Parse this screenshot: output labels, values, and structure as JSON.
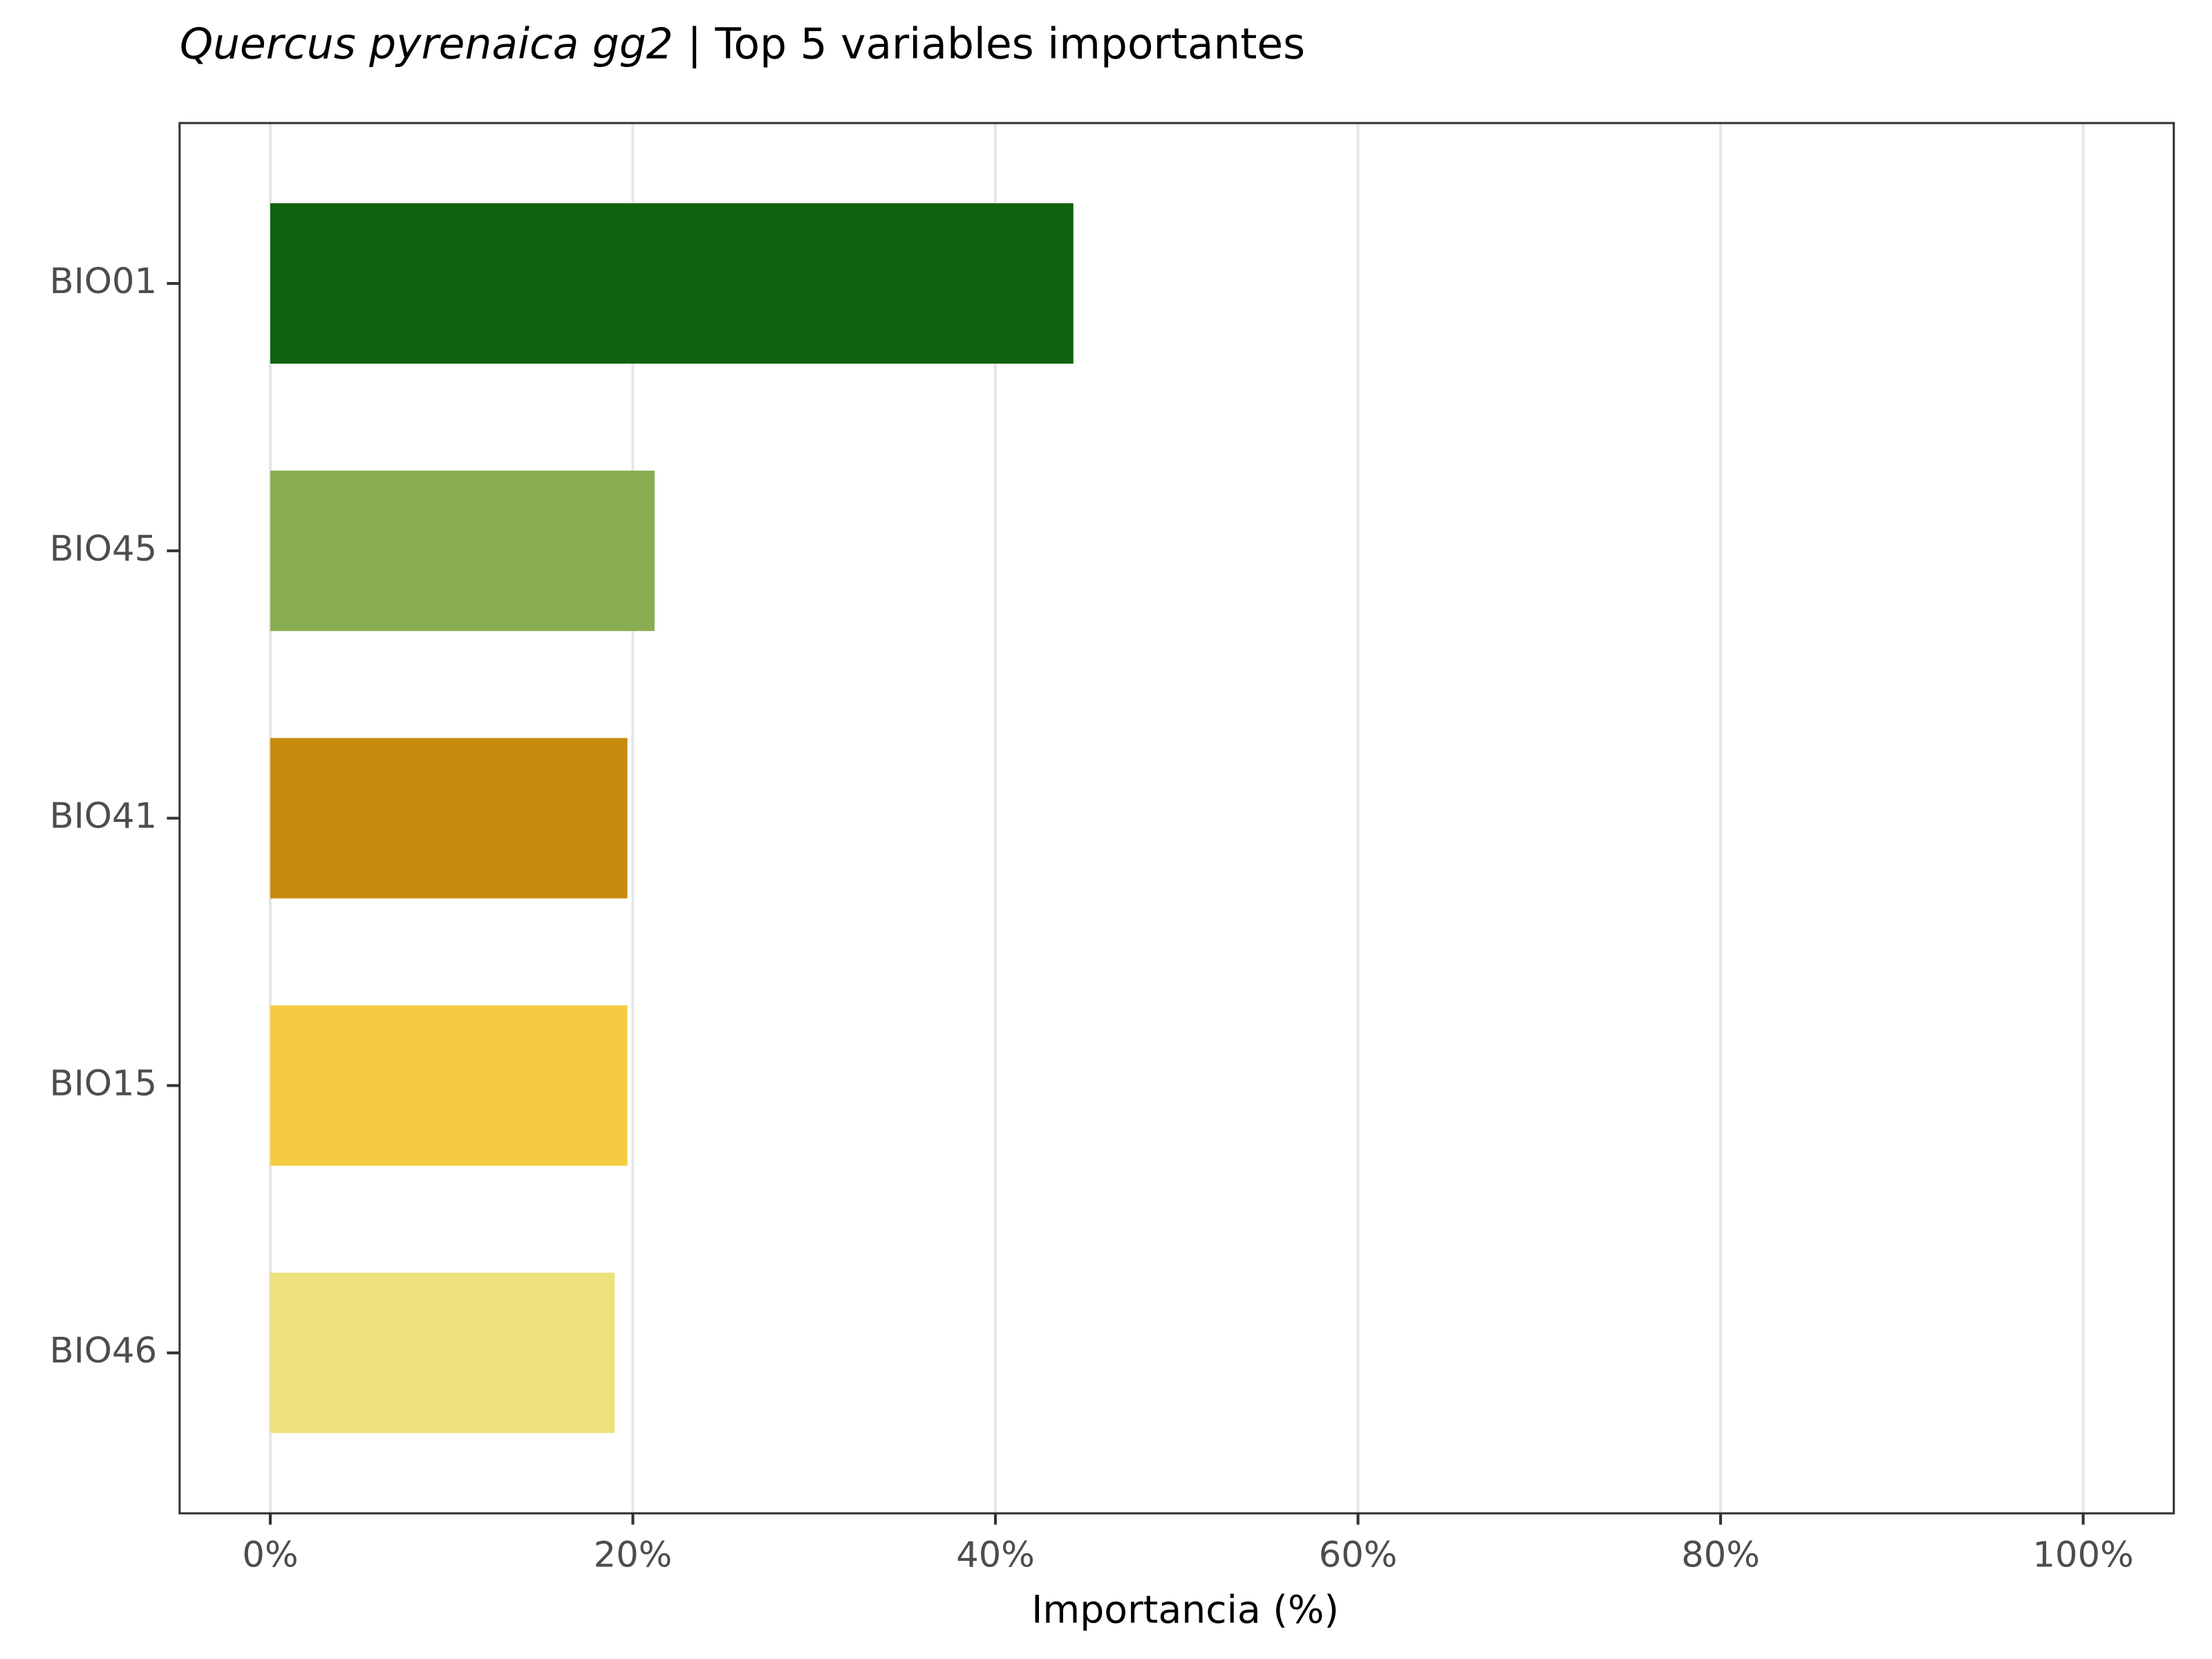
{
  "chart_data": {
    "type": "bar",
    "orientation": "horizontal",
    "title": {
      "species": "Quercus pyrenaica gg2",
      "text": "| Top 5 variables importantes"
    },
    "x_label": "Importancia (%)",
    "categories": [
      "BIO01",
      "BIO45",
      "BIO41",
      "BIO15",
      "BIO46"
    ],
    "values": [
      44.3,
      21.2,
      19.7,
      19.7,
      19.0
    ],
    "colors": [
      "#11620f",
      "#8aad53",
      "#c98b0e",
      "#f5cb42",
      "#ede27d"
    ],
    "xlim": [
      -5,
      105
    ],
    "xticks": [
      {
        "value": 0,
        "label": "0%"
      },
      {
        "value": 20,
        "label": "20%"
      },
      {
        "value": 40,
        "label": "40%"
      },
      {
        "value": 60,
        "label": "60%"
      },
      {
        "value": 80,
        "label": "80%"
      },
      {
        "value": 100,
        "label": "100%"
      }
    ],
    "grid": true
  }
}
